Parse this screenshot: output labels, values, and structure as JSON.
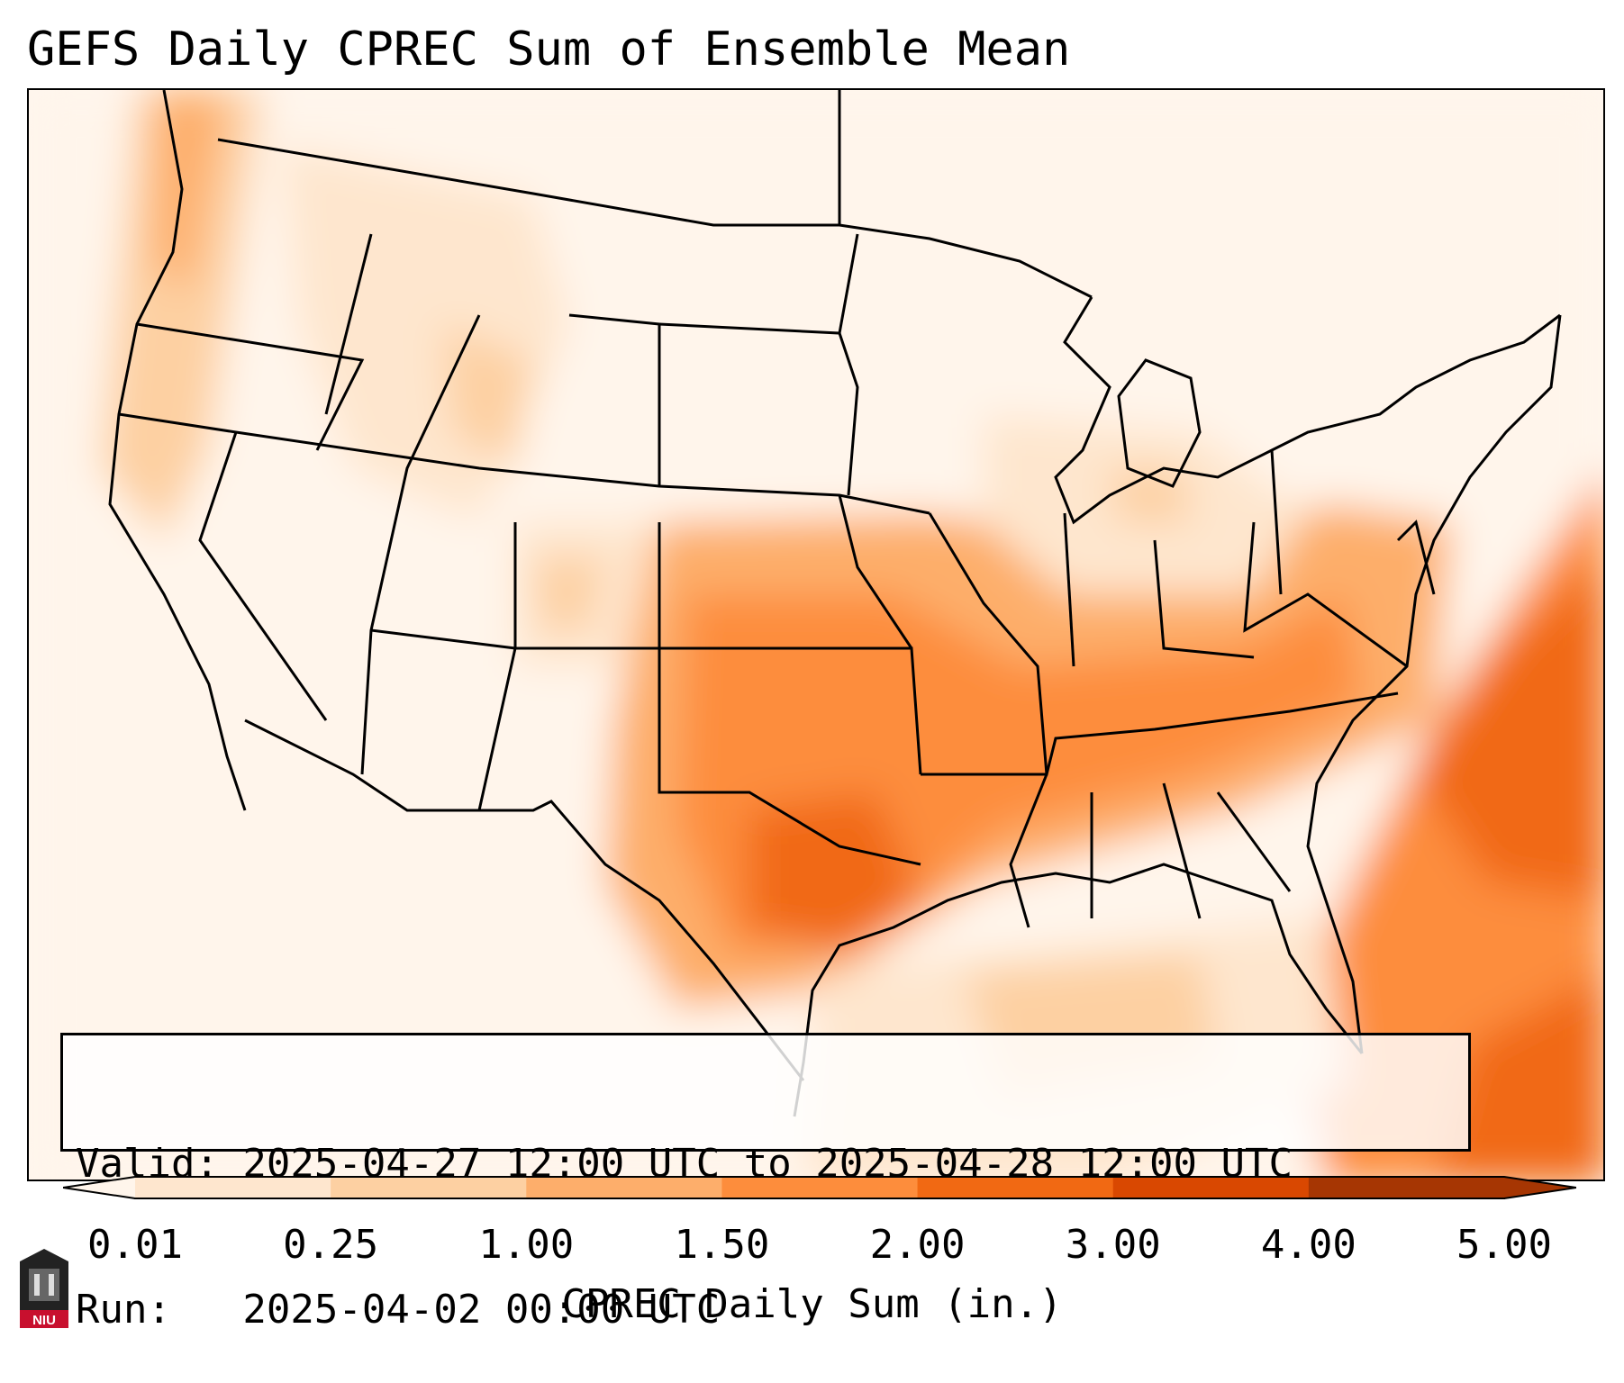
{
  "title": "GEFS Daily CPREC Sum of Ensemble Mean",
  "info": {
    "valid_line": "Valid: 2025-04-27 12:00 UTC to 2025-04-28 12:00 UTC",
    "run_line": "Run:   2025-04-02 00:00 UTC"
  },
  "colorbar": {
    "label": "CPREC Daily Sum (in.)",
    "ticks": [
      "0.01",
      "0.25",
      "1.00",
      "1.50",
      "2.00",
      "3.00",
      "4.00",
      "5.00"
    ],
    "colors": [
      "#fff5eb",
      "#fee6ce",
      "#fdd0a2",
      "#fdae6b",
      "#fd8d3c",
      "#f16913",
      "#d94801",
      "#a63603"
    ],
    "extend": "both"
  },
  "logo": {
    "text": "NIU",
    "color": "#c8102e"
  },
  "map": {
    "region": "Contiguous United States with Gulf of Mexico and western Atlantic",
    "max_region": "Texas / Oklahoma / Lower Mississippi Valley and offshore Atlantic"
  }
}
